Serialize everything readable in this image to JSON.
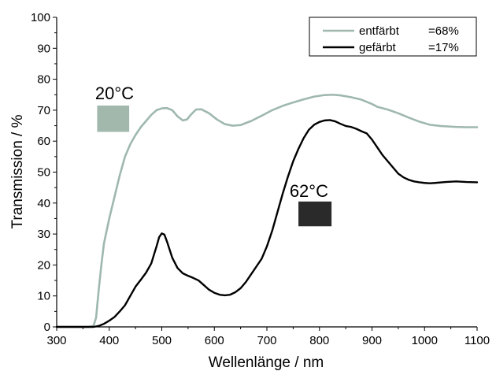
{
  "chart_data": {
    "type": "line",
    "xlabel": "Wellenlänge / nm",
    "ylabel": "Transmission / %",
    "xlim": [
      300,
      1100
    ],
    "ylim": [
      0,
      100
    ],
    "xticks": [
      300,
      400,
      500,
      600,
      700,
      800,
      900,
      1000,
      1100
    ],
    "yticks": [
      0,
      10,
      20,
      30,
      40,
      50,
      60,
      70,
      80,
      90,
      100
    ],
    "grid": false,
    "legend_position": "top-right",
    "series": [
      {
        "name": "entfärbt",
        "legend_value": "=68%",
        "color": "#9fb8ae",
        "points": [
          [
            300,
            0
          ],
          [
            360,
            0
          ],
          [
            370,
            0.3
          ],
          [
            375,
            3
          ],
          [
            380,
            12
          ],
          [
            385,
            20
          ],
          [
            390,
            27
          ],
          [
            400,
            35
          ],
          [
            410,
            42
          ],
          [
            420,
            49
          ],
          [
            430,
            55
          ],
          [
            440,
            59
          ],
          [
            450,
            62
          ],
          [
            460,
            64.5
          ],
          [
            470,
            66.5
          ],
          [
            480,
            68.5
          ],
          [
            490,
            70
          ],
          [
            500,
            70.6
          ],
          [
            510,
            70.7
          ],
          [
            520,
            70
          ],
          [
            530,
            68
          ],
          [
            540,
            66.7
          ],
          [
            548,
            67
          ],
          [
            555,
            68.5
          ],
          [
            565,
            70.2
          ],
          [
            575,
            70.3
          ],
          [
            590,
            69
          ],
          [
            605,
            67
          ],
          [
            620,
            65.5
          ],
          [
            635,
            65
          ],
          [
            650,
            65.2
          ],
          [
            670,
            66.5
          ],
          [
            690,
            68.2
          ],
          [
            710,
            70
          ],
          [
            730,
            71.4
          ],
          [
            750,
            72.5
          ],
          [
            770,
            73.5
          ],
          [
            790,
            74.4
          ],
          [
            810,
            74.9
          ],
          [
            825,
            75
          ],
          [
            840,
            74.8
          ],
          [
            860,
            74.2
          ],
          [
            880,
            73.4
          ],
          [
            900,
            72
          ],
          [
            910,
            71.1
          ],
          [
            930,
            70.2
          ],
          [
            950,
            69
          ],
          [
            970,
            67.6
          ],
          [
            990,
            66.3
          ],
          [
            1010,
            65.3
          ],
          [
            1030,
            64.9
          ],
          [
            1060,
            64.6
          ],
          [
            1080,
            64.5
          ],
          [
            1100,
            64.5
          ]
        ]
      },
      {
        "name": "gefärbt",
        "legend_value": "=17%",
        "color": "#000000",
        "points": [
          [
            300,
            0
          ],
          [
            370,
            0
          ],
          [
            380,
            0.3
          ],
          [
            390,
            1
          ],
          [
            400,
            2
          ],
          [
            410,
            3.2
          ],
          [
            420,
            5
          ],
          [
            430,
            7
          ],
          [
            440,
            10
          ],
          [
            450,
            13
          ],
          [
            460,
            15.2
          ],
          [
            470,
            17.5
          ],
          [
            480,
            20.5
          ],
          [
            490,
            26
          ],
          [
            495,
            29
          ],
          [
            500,
            30.2
          ],
          [
            505,
            29.8
          ],
          [
            510,
            27.5
          ],
          [
            520,
            22.3
          ],
          [
            530,
            19
          ],
          [
            540,
            17.3
          ],
          [
            550,
            16.5
          ],
          [
            560,
            15.8
          ],
          [
            570,
            15
          ],
          [
            580,
            13.5
          ],
          [
            590,
            12
          ],
          [
            600,
            11
          ],
          [
            610,
            10.4
          ],
          [
            620,
            10.2
          ],
          [
            630,
            10.4
          ],
          [
            640,
            11.2
          ],
          [
            650,
            12.5
          ],
          [
            660,
            14.5
          ],
          [
            670,
            17
          ],
          [
            680,
            19.5
          ],
          [
            690,
            22
          ],
          [
            700,
            26
          ],
          [
            710,
            31
          ],
          [
            720,
            37
          ],
          [
            730,
            43
          ],
          [
            740,
            48.5
          ],
          [
            750,
            53.5
          ],
          [
            760,
            57.5
          ],
          [
            770,
            61
          ],
          [
            780,
            63.7
          ],
          [
            790,
            65.3
          ],
          [
            800,
            66.2
          ],
          [
            810,
            66.7
          ],
          [
            820,
            66.8
          ],
          [
            830,
            66.4
          ],
          [
            840,
            65.6
          ],
          [
            850,
            64.9
          ],
          [
            860,
            64.6
          ],
          [
            870,
            64
          ],
          [
            880,
            63.2
          ],
          [
            890,
            62.5
          ],
          [
            900,
            60.5
          ],
          [
            910,
            58
          ],
          [
            920,
            55.5
          ],
          [
            930,
            53.5
          ],
          [
            940,
            51.5
          ],
          [
            950,
            49.5
          ],
          [
            960,
            48.3
          ],
          [
            970,
            47.5
          ],
          [
            980,
            47
          ],
          [
            990,
            46.7
          ],
          [
            1000,
            46.5
          ],
          [
            1010,
            46.4
          ],
          [
            1020,
            46.5
          ],
          [
            1040,
            46.8
          ],
          [
            1060,
            47
          ],
          [
            1080,
            46.8
          ],
          [
            1100,
            46.7
          ]
        ]
      }
    ],
    "annotations": [
      {
        "text": "20°C",
        "x": 410,
        "y": 73.5,
        "swatch_color": "#a2b8ad",
        "swatch_x": [
          377,
          438
        ],
        "swatch_y": [
          63,
          71.5
        ]
      },
      {
        "text": "62°C",
        "x": 780,
        "y": 42,
        "swatch_color": "#2a2a2a",
        "swatch_x": [
          760,
          823
        ],
        "swatch_y": [
          32.5,
          40.5
        ]
      }
    ]
  }
}
